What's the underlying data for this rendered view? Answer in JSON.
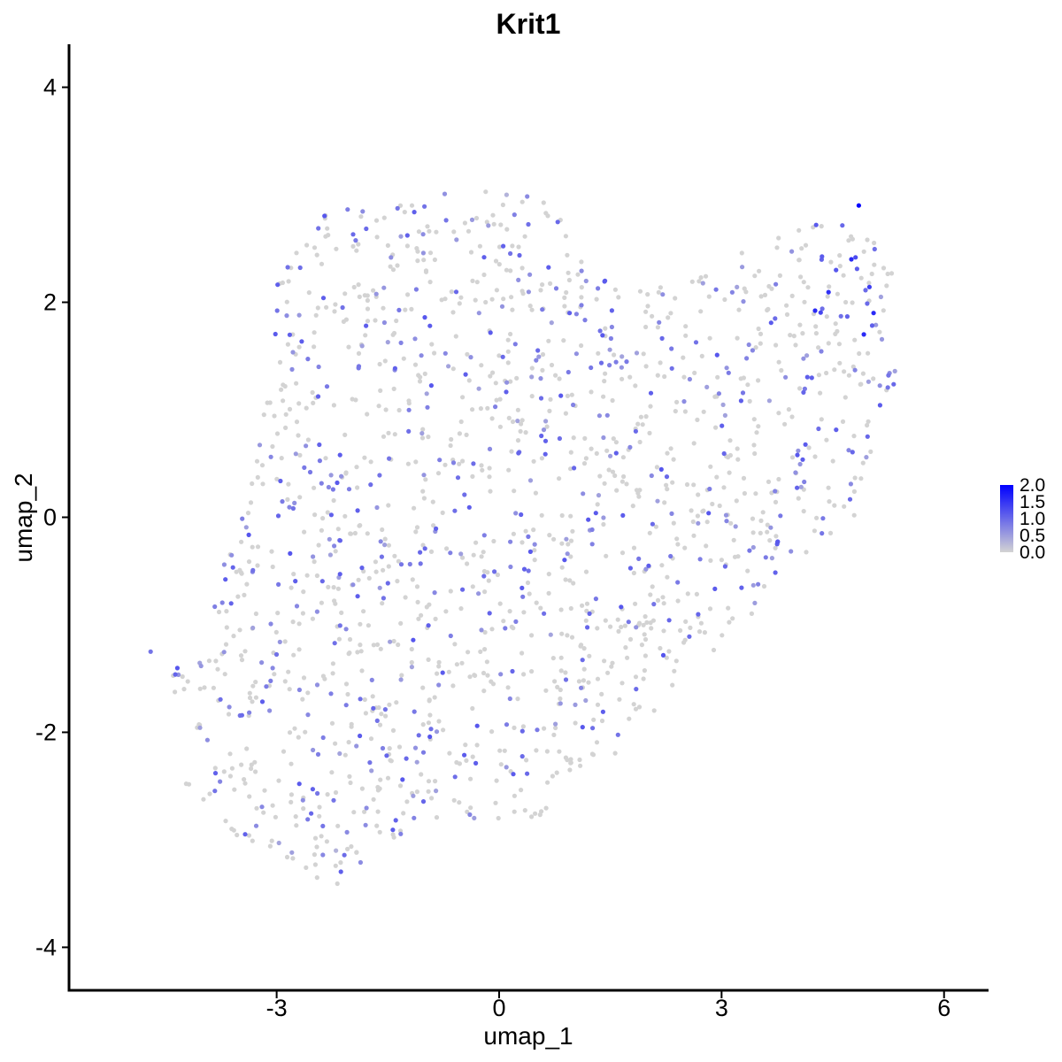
{
  "chart_data": {
    "type": "scatter",
    "title": "Krit1",
    "xlabel": "umap_1",
    "ylabel": "umap_2",
    "xlim": [
      -5.8,
      6.6
    ],
    "ylim": [
      -4.4,
      4.4
    ],
    "x_ticks": [
      -3,
      0,
      3,
      6
    ],
    "x_tick_labels": [
      "-3",
      "0",
      "3",
      "6"
    ],
    "y_ticks": [
      -4,
      -2,
      0,
      2,
      4
    ],
    "y_tick_labels": [
      "-4",
      "-2",
      "0",
      "2",
      "4"
    ],
    "grid": false,
    "legend": {
      "position": "right",
      "labels": [
        "2.0",
        "1.5",
        "1.0",
        "0.5",
        "0.0"
      ],
      "values": [
        2.0,
        1.5,
        1.0,
        0.5,
        0.0
      ]
    },
    "color_scale": {
      "low": "#d3d3d3",
      "high": "#0000ff",
      "min": 0.0,
      "max": 2.0
    },
    "notable_points": [
      {
        "x": 4.85,
        "y": 2.9,
        "value": 2.0
      },
      {
        "x": 4.75,
        "y": 2.4,
        "value": 1.6
      },
      {
        "x": 5.05,
        "y": 1.9,
        "value": 1.6
      },
      {
        "x": 0.95,
        "y": 1.9,
        "value": 1.1
      },
      {
        "x": -4.7,
        "y": -1.25,
        "value": 0.9
      },
      {
        "x": -2.2,
        "y": -3.1,
        "value": 0.3
      },
      {
        "x": 0.1,
        "y": 3.0,
        "value": 0.3
      }
    ],
    "generator": {
      "n_points": 1650,
      "seed": 7,
      "hull": [
        [
          -4.7,
          -1.3
        ],
        [
          -4.1,
          -1.9
        ],
        [
          -4.3,
          -2.5
        ],
        [
          -3.8,
          -2.9
        ],
        [
          -3.0,
          -3.1
        ],
        [
          -2.3,
          -3.5
        ],
        [
          -1.4,
          -3.0
        ],
        [
          -0.3,
          -2.8
        ],
        [
          0.6,
          -2.8
        ],
        [
          1.6,
          -2.2
        ],
        [
          2.6,
          -1.4
        ],
        [
          3.4,
          -1.0
        ],
        [
          4.0,
          -0.4
        ],
        [
          4.8,
          0.0
        ],
        [
          5.1,
          0.7
        ],
        [
          5.4,
          1.4
        ],
        [
          5.4,
          2.3
        ],
        [
          5.0,
          2.7
        ],
        [
          4.4,
          3.0
        ],
        [
          4.0,
          2.7
        ],
        [
          3.4,
          2.5
        ],
        [
          2.6,
          2.3
        ],
        [
          1.8,
          2.1
        ],
        [
          1.2,
          2.4
        ],
        [
          0.9,
          2.9
        ],
        [
          0.1,
          3.1
        ],
        [
          -1.2,
          3.0
        ],
        [
          -2.3,
          2.9
        ],
        [
          -3.0,
          2.2
        ],
        [
          -3.1,
          1.3
        ],
        [
          -3.3,
          0.4
        ],
        [
          -3.8,
          -0.6
        ],
        [
          -4.1,
          -1.1
        ]
      ],
      "expressed_fraction": 0.33
    }
  }
}
